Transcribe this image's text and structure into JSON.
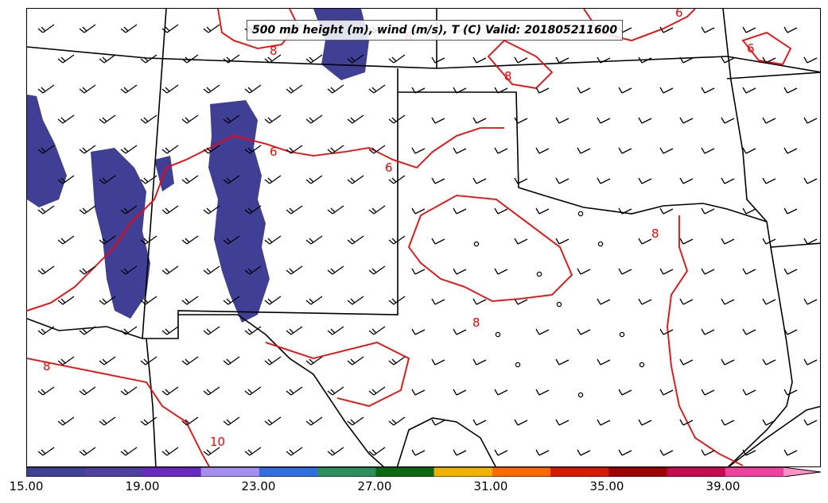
{
  "title": "500 mb height (m), wind (m/s), T (C) Valid: 201805211600",
  "colorbar": {
    "ticks": [
      "15.00",
      "19.00",
      "23.00",
      "27.00",
      "31.00",
      "35.00",
      "39.00"
    ],
    "colors": [
      "#3f3f96",
      "#4f3fa0",
      "#6a29c0",
      "#a58ef0",
      "#2f6fe0",
      "#2e8f5e",
      "#0b6a12",
      "#f0b400",
      "#ff6a00",
      "#d81a00",
      "#a00000",
      "#c80a50",
      "#f040a0",
      "#ff90c8"
    ]
  },
  "contours": [
    {
      "label": "6",
      "color": "#ff0000"
    },
    {
      "label": "8",
      "color": "#ff0000"
    },
    {
      "label": "10",
      "color": "#ff0000"
    }
  ],
  "layers": {
    "temperature_contour_color": "#ff0000",
    "wind_barb_color": "#000000",
    "boundary_color": "#000000",
    "shading_color": "#3f3f96"
  }
}
